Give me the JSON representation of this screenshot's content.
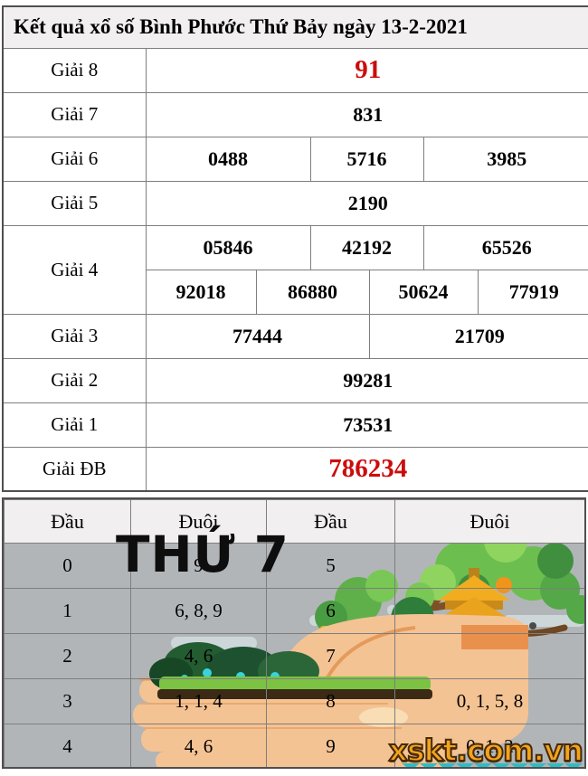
{
  "title": "Kết quả xổ số Bình Phước Thứ Bảy ngày 13-2-2021",
  "results": {
    "rows": [
      {
        "label": "Giải 8",
        "values": [
          "91"
        ],
        "highlight": true
      },
      {
        "label": "Giải 7",
        "values": [
          "831"
        ]
      },
      {
        "label": "Giải 6",
        "values": [
          "0488",
          "5716",
          "3985"
        ]
      },
      {
        "label": "Giải 5",
        "values": [
          "2190"
        ]
      },
      {
        "label": "Giải 4",
        "values": [
          "05846",
          "42192",
          "65526",
          "92018",
          "86880",
          "50624",
          "77919"
        ]
      },
      {
        "label": "Giải 3",
        "values": [
          "77444",
          "21709"
        ]
      },
      {
        "label": "Giải 2",
        "values": [
          "99281"
        ]
      },
      {
        "label": "Giải 1",
        "values": [
          "73531"
        ]
      },
      {
        "label": "Giải ĐB",
        "values": [
          "786234"
        ],
        "highlight": true
      }
    ]
  },
  "stats": {
    "headers": [
      "Đầu",
      "Đuôi",
      "Đầu",
      "Đuôi"
    ],
    "rows": [
      [
        "0",
        "9",
        "5",
        ""
      ],
      [
        "1",
        "6, 8, 9",
        "6",
        ""
      ],
      [
        "2",
        "4, 6",
        "7",
        ""
      ],
      [
        "3",
        "1, 1, 4",
        "8",
        "0, 1, 5, 8"
      ],
      [
        "4",
        "4, 6",
        "9",
        "0, 1, 2"
      ]
    ]
  },
  "watermark": "THỨ 7",
  "logo": "xskt.com.vn",
  "colors": {
    "highlight_red": "#cc0c0c",
    "row_gray": "#b1b5b8",
    "logo_orange": "#f2a41d"
  }
}
